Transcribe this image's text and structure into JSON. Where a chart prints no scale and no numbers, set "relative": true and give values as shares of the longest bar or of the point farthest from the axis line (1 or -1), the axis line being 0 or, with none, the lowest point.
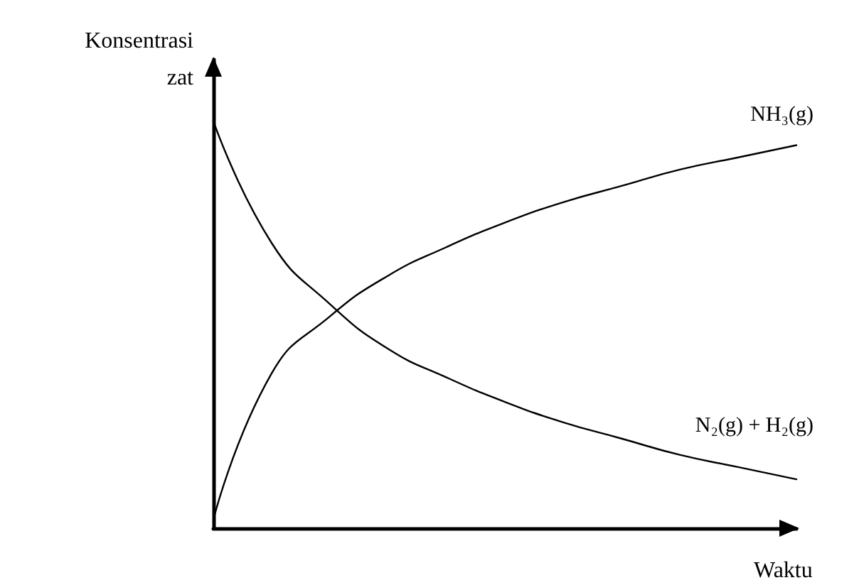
{
  "chart_data": {
    "type": "line",
    "relative": true,
    "xlabel": "Waktu",
    "ylabel": "Konsentrasi\nzat",
    "categories": [
      null,
      null,
      null,
      null,
      null,
      null,
      null,
      null,
      null,
      null,
      null
    ],
    "marker": "none",
    "line_style": "solid",
    "grid": false,
    "legend": false,
    "series": [
      {
        "name": "NH₃(g)",
        "color": "#000000",
        "values": [
          0.02,
          0.38,
          0.52,
          0.62,
          0.69,
          0.75,
          0.8,
          0.84,
          0.88,
          0.91,
          0.94
        ]
      },
      {
        "name": "N₂(g) + H₂(g)",
        "color": "#000000",
        "values": [
          1,
          0.7,
          0.55,
          0.44,
          0.37,
          0.31,
          0.26,
          0.22,
          0.18,
          0.15,
          0.12
        ]
      }
    ]
  }
}
